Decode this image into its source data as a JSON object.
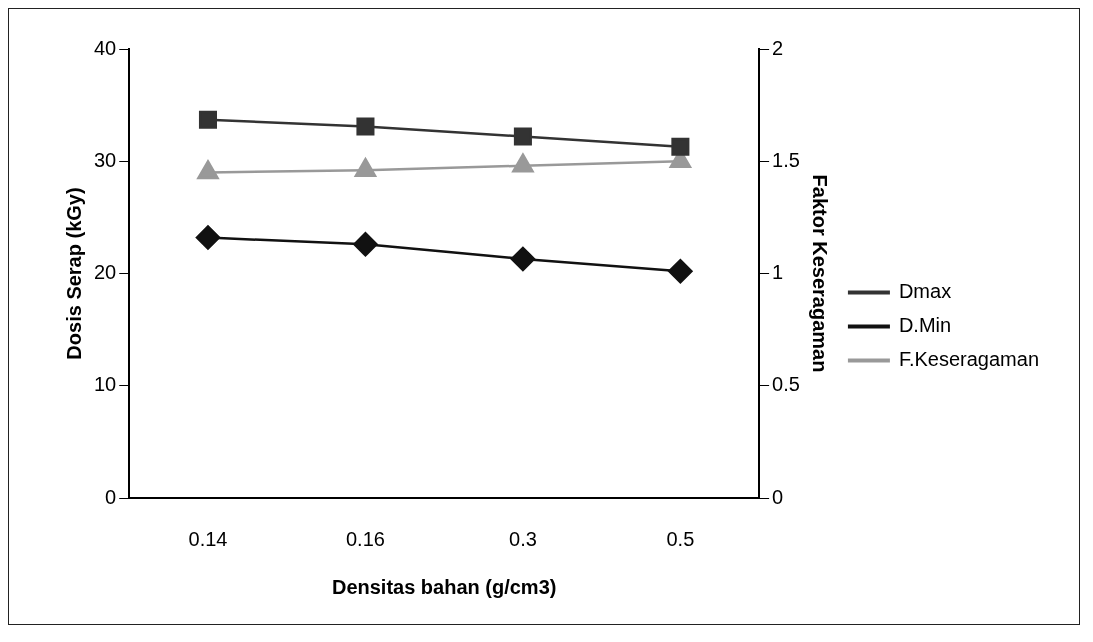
{
  "chart_data": {
    "type": "line",
    "xlabel": "Densitas bahan (g/cm3)",
    "ylabel": "Dosis Serap (kGy)",
    "y2label": "Faktor Keseragaman",
    "categories": [
      "0.14",
      "0.16",
      "0.3",
      "0.5"
    ],
    "series": [
      {
        "name": "Dmax",
        "color": "#333333",
        "marker": "square",
        "values": [
          33.7,
          33.1,
          32.2,
          31.3
        ]
      },
      {
        "name": "D.Min",
        "color": "#111111",
        "marker": "diamond",
        "values": [
          23.2,
          22.6,
          21.3,
          20.2
        ]
      },
      {
        "name": "F.Keseragaman",
        "color": "#999999",
        "marker": "triangle",
        "axis": "y2",
        "values": [
          1.45,
          1.46,
          1.48,
          1.5
        ]
      }
    ],
    "ylim": [
      0,
      40
    ],
    "yticks": [
      0,
      10,
      20,
      30,
      40
    ],
    "y2lim": [
      0,
      2
    ],
    "y2ticks": [
      0,
      0.5,
      1,
      1.5,
      2
    ],
    "grid": false,
    "legend": "right",
    "line_style": "solid"
  }
}
